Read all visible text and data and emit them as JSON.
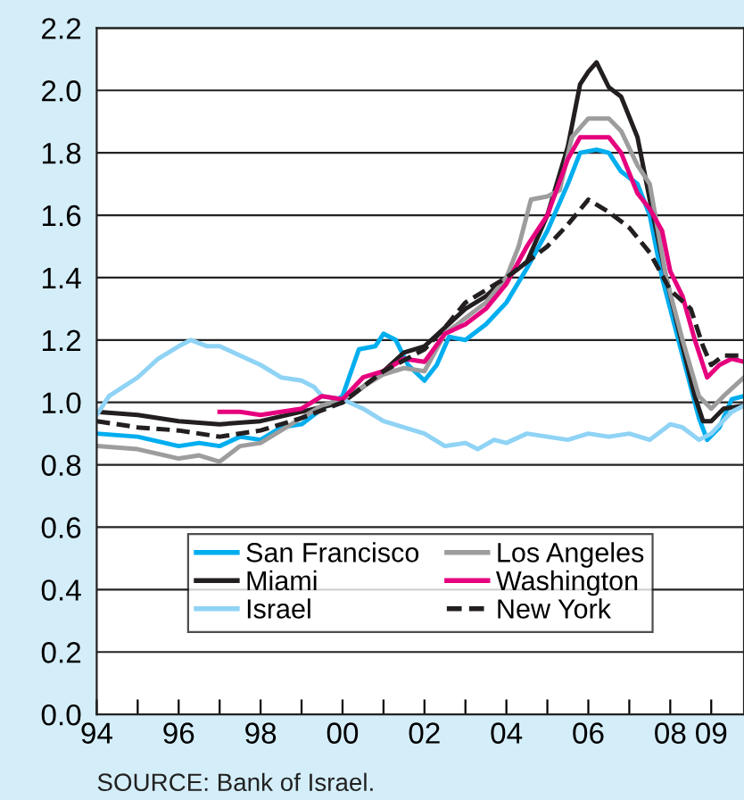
{
  "chart_data": {
    "type": "line",
    "annotations": [
      "SOURCE: Bank of Israel."
    ],
    "xlim": [
      1994,
      2009.8
    ],
    "xticks": [
      {
        "value": 1994,
        "label": "94"
      },
      {
        "value": 1995,
        "label": null
      },
      {
        "value": 1996,
        "label": "96"
      },
      {
        "value": 1997,
        "label": null
      },
      {
        "value": 1998,
        "label": "98"
      },
      {
        "value": 1999,
        "label": null
      },
      {
        "value": 2000,
        "label": "00"
      },
      {
        "value": 2001,
        "label": null
      },
      {
        "value": 2002,
        "label": "02"
      },
      {
        "value": 2003,
        "label": null
      },
      {
        "value": 2004,
        "label": "04"
      },
      {
        "value": 2005,
        "label": null
      },
      {
        "value": 2006,
        "label": "06"
      },
      {
        "value": 2007,
        "label": null
      },
      {
        "value": 2008,
        "label": "08"
      },
      {
        "value": 2009,
        "label": "09"
      }
    ],
    "ylim": [
      0,
      2.2
    ],
    "yticks": [
      {
        "value": 0,
        "label": "0.0"
      },
      {
        "value": 0.2,
        "label": "0.2"
      },
      {
        "value": 0.4,
        "label": "0.4"
      },
      {
        "value": 0.6,
        "label": "0.6"
      },
      {
        "value": 0.8,
        "label": "0.8"
      },
      {
        "value": 1.0,
        "label": "1.0"
      },
      {
        "value": 1.2,
        "label": "1.2"
      },
      {
        "value": 1.4,
        "label": "1.4"
      },
      {
        "value": 1.6,
        "label": "1.6"
      },
      {
        "value": 1.8,
        "label": "1.8"
      },
      {
        "value": 2.0,
        "label": "2.0"
      },
      {
        "value": 2.2,
        "label": "2.2"
      }
    ],
    "grid": "y",
    "legend": "bottom",
    "series": [
      {
        "name": "San Francisco",
        "color": "#00aeef",
        "line_style": "solid",
        "x": [
          1994,
          1995,
          1996,
          1996.5,
          1997,
          1997.5,
          1998,
          1998.5,
          1999,
          1999.5,
          2000,
          2000.4,
          2000.8,
          2001,
          2001.3,
          2001.6,
          2002,
          2002.3,
          2002.6,
          2003,
          2003.5,
          2004,
          2004.5,
          2005,
          2005.5,
          2005.8,
          2006.2,
          2006.5,
          2006.8,
          2007.2,
          2007.5,
          2007.8,
          2008.3,
          2008.7,
          2008.9,
          2009.2,
          2009.5,
          2009.8
        ],
        "values": [
          0.9,
          0.89,
          0.86,
          0.87,
          0.86,
          0.89,
          0.88,
          0.92,
          0.93,
          0.98,
          1.02,
          1.17,
          1.18,
          1.22,
          1.2,
          1.12,
          1.07,
          1.12,
          1.21,
          1.2,
          1.25,
          1.32,
          1.43,
          1.55,
          1.7,
          1.8,
          1.81,
          1.8,
          1.74,
          1.7,
          1.6,
          1.4,
          1.15,
          0.95,
          0.88,
          0.92,
          1.01,
          1.02
        ]
      },
      {
        "name": "Miami",
        "color": "#231f20",
        "line_style": "solid",
        "x": [
          1994,
          1995,
          1996,
          1997,
          1998,
          1999,
          2000,
          2000.5,
          2001,
          2001.5,
          2002,
          2002.5,
          2003,
          2003.5,
          2004,
          2004.5,
          2005,
          2005.5,
          2005.8,
          2006,
          2006.2,
          2006.5,
          2006.8,
          2007.2,
          2007.5,
          2007.9,
          2008.3,
          2008.6,
          2008.8,
          2009,
          2009.3,
          2009.8
        ],
        "values": [
          0.97,
          0.96,
          0.94,
          0.93,
          0.94,
          0.97,
          1.0,
          1.05,
          1.1,
          1.16,
          1.18,
          1.24,
          1.3,
          1.34,
          1.4,
          1.45,
          1.6,
          1.82,
          2.02,
          2.06,
          2.09,
          2.01,
          1.98,
          1.85,
          1.65,
          1.4,
          1.18,
          1.02,
          0.94,
          0.94,
          0.98,
          0.99
        ]
      },
      {
        "name": "Israel",
        "color": "#8fd3f5",
        "line_style": "solid",
        "x": [
          1994,
          1994.3,
          1995,
          1995.5,
          1996,
          1996.3,
          1996.7,
          1997,
          1997.5,
          1998,
          1998.5,
          1999,
          1999.3,
          1999.5,
          2000,
          2000.5,
          2001,
          2001.5,
          2002,
          2002.5,
          2003,
          2003.3,
          2003.7,
          2004,
          2004.5,
          2005,
          2005.5,
          2006,
          2006.5,
          2007,
          2007.5,
          2008,
          2008.3,
          2008.7,
          2009,
          2009.5,
          2009.8
        ],
        "values": [
          0.96,
          1.02,
          1.08,
          1.14,
          1.18,
          1.2,
          1.18,
          1.18,
          1.15,
          1.12,
          1.08,
          1.07,
          1.05,
          1.02,
          1.01,
          0.98,
          0.94,
          0.92,
          0.9,
          0.86,
          0.87,
          0.85,
          0.88,
          0.87,
          0.9,
          0.89,
          0.88,
          0.9,
          0.89,
          0.9,
          0.88,
          0.93,
          0.92,
          0.88,
          0.9,
          0.97,
          0.99
        ]
      },
      {
        "name": "Los Angeles",
        "color": "#9d9d9d",
        "line_style": "solid",
        "x": [
          1994,
          1995,
          1996,
          1996.5,
          1997,
          1997.5,
          1998,
          1998.5,
          1999,
          1999.5,
          2000,
          2000.5,
          2001,
          2001.5,
          2002,
          2002.5,
          2003,
          2003.5,
          2004,
          2004.3,
          2004.6,
          2005,
          2005.3,
          2005.6,
          2006,
          2006.5,
          2006.8,
          2007.2,
          2007.5,
          2007.9,
          2008.3,
          2008.7,
          2009,
          2009.3,
          2009.8
        ],
        "values": [
          0.86,
          0.85,
          0.82,
          0.83,
          0.81,
          0.86,
          0.87,
          0.91,
          0.95,
          0.99,
          1.01,
          1.05,
          1.09,
          1.11,
          1.1,
          1.22,
          1.27,
          1.32,
          1.4,
          1.5,
          1.65,
          1.66,
          1.68,
          1.85,
          1.91,
          1.91,
          1.87,
          1.76,
          1.7,
          1.4,
          1.2,
          1.02,
          0.98,
          1.02,
          1.08
        ]
      },
      {
        "name": "Washington",
        "color": "#e6007e",
        "line_style": "solid",
        "x": [
          1997,
          1997.5,
          1998,
          1998.5,
          1999,
          1999.5,
          2000,
          2000.5,
          2001,
          2001.5,
          2002,
          2002.5,
          2003,
          2003.5,
          2004,
          2004.5,
          2005,
          2005.5,
          2005.8,
          2006.5,
          2006.8,
          2007.2,
          2007.5,
          2007.8,
          2008,
          2008.3,
          2008.6,
          2008.9,
          2009.2,
          2009.5,
          2009.8
        ],
        "values": [
          0.97,
          0.97,
          0.96,
          0.97,
          0.98,
          1.02,
          1.01,
          1.08,
          1.1,
          1.14,
          1.13,
          1.22,
          1.25,
          1.3,
          1.38,
          1.5,
          1.6,
          1.78,
          1.85,
          1.85,
          1.8,
          1.67,
          1.62,
          1.55,
          1.42,
          1.34,
          1.2,
          1.08,
          1.12,
          1.14,
          1.13
        ]
      },
      {
        "name": "New York",
        "color": "#231f20",
        "line_style": "dashed",
        "x": [
          1994,
          1995,
          1996,
          1997,
          1998,
          1999,
          2000,
          2001,
          2002,
          2002.5,
          2003,
          2004,
          2005,
          2005.5,
          2006,
          2006.5,
          2007,
          2007.5,
          2008,
          2008.5,
          2008.8,
          2009,
          2009.3,
          2009.8
        ],
        "values": [
          0.94,
          0.92,
          0.91,
          0.89,
          0.91,
          0.95,
          1.0,
          1.1,
          1.17,
          1.24,
          1.32,
          1.4,
          1.5,
          1.57,
          1.65,
          1.61,
          1.56,
          1.48,
          1.36,
          1.3,
          1.18,
          1.12,
          1.15,
          1.15
        ]
      }
    ]
  }
}
